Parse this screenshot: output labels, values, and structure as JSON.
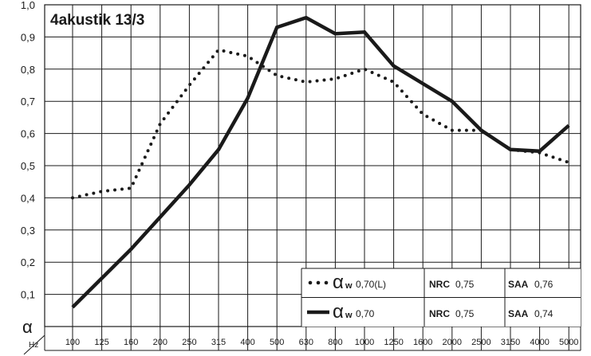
{
  "chart_data": {
    "type": "line",
    "title": "4akustik 13/3",
    "ylabel": "α",
    "xlabel": "Hz",
    "ylim": [
      0,
      1.0
    ],
    "grid": true,
    "categories": [
      "100",
      "125",
      "160",
      "200",
      "250",
      "315",
      "400",
      "500",
      "630",
      "800",
      "1000",
      "1250",
      "1600",
      "2000",
      "2500",
      "3150",
      "4000",
      "5000"
    ],
    "y_ticks": [
      "0,1",
      "0,2",
      "0,3",
      "0,4",
      "0,5",
      "0,6",
      "0,7",
      "0,8",
      "0,9",
      "1,0"
    ],
    "series": [
      {
        "style": "dotted",
        "values": [
          0.4,
          0.42,
          0.43,
          0.63,
          0.75,
          0.86,
          0.84,
          0.78,
          0.76,
          0.77,
          0.8,
          0.76,
          0.66,
          0.61,
          0.61,
          0.55,
          0.54,
          0.51
        ]
      },
      {
        "style": "solid",
        "values": [
          0.06,
          0.15,
          0.24,
          0.34,
          0.44,
          0.55,
          0.71,
          0.93,
          0.96,
          0.91,
          0.915,
          0.81,
          0.755,
          0.7,
          0.61,
          0.55,
          0.545,
          0.625
        ]
      }
    ],
    "legend": {
      "placement": "bottom-right",
      "rows": [
        {
          "symbol": "α",
          "sub": "w",
          "aw_value": "0,70(L)",
          "nrc_label": "NRC",
          "nrc_value": "0,75",
          "saa_label": "SAA",
          "saa_value": "0,76",
          "style": "dotted"
        },
        {
          "symbol": "α",
          "sub": "w",
          "aw_value": "0,70",
          "nrc_label": "NRC",
          "nrc_value": "0,75",
          "saa_label": "SAA",
          "saa_value": "0,74",
          "style": "solid"
        }
      ]
    },
    "colors": {
      "line": "#1a1a1a",
      "grid": "#1a1a1a",
      "background": "#ffffff"
    }
  }
}
